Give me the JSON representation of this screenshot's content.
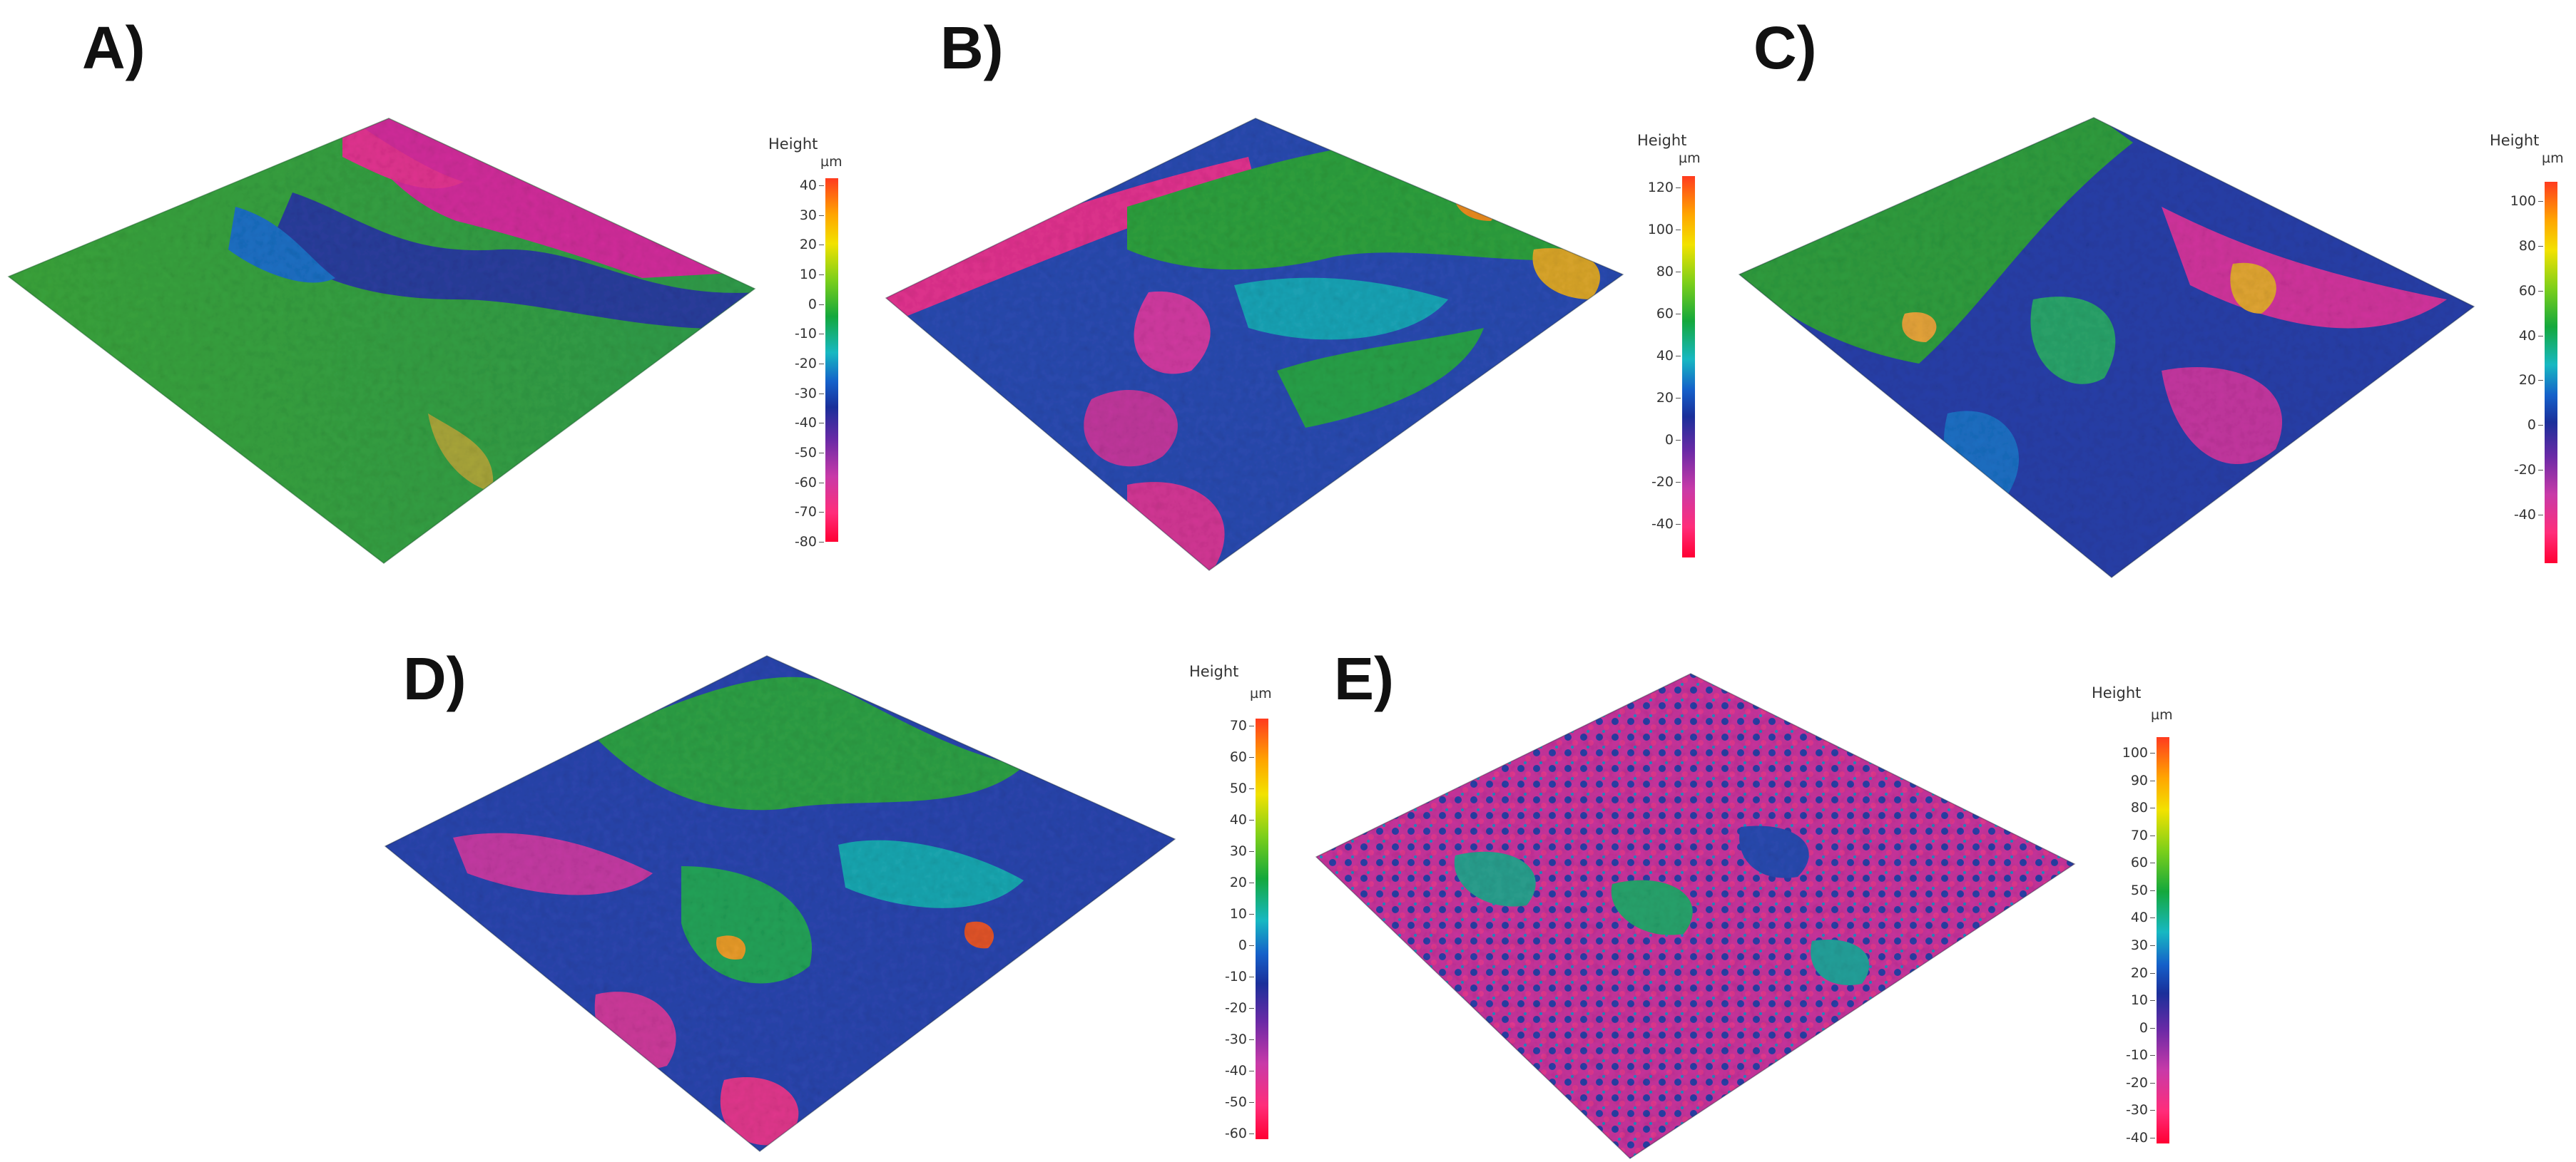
{
  "panels": [
    {
      "label": "A)",
      "colorbar_title": "Height",
      "colorbar_unit": "µm",
      "ticks": [
        "40",
        "30",
        "20",
        "10",
        "0",
        "-10",
        "-20",
        "-30",
        "-40",
        "-50",
        "-60",
        "-70",
        "-80"
      ]
    },
    {
      "label": "B)",
      "colorbar_title": "Height",
      "colorbar_unit": "µm",
      "ticks": [
        "120",
        "100",
        "80",
        "60",
        "40",
        "20",
        "0",
        "-20",
        "-40"
      ]
    },
    {
      "label": "C)",
      "colorbar_title": "Height",
      "colorbar_unit": "µm",
      "ticks": [
        "100",
        "80",
        "60",
        "40",
        "20",
        "0",
        "-20",
        "-40"
      ]
    },
    {
      "label": "D)",
      "colorbar_title": "Height",
      "colorbar_unit": "µm",
      "ticks": [
        "70",
        "60",
        "50",
        "40",
        "30",
        "20",
        "10",
        "0",
        "-10",
        "-20",
        "-30",
        "-40",
        "-50",
        "-60"
      ]
    },
    {
      "label": "E)",
      "colorbar_title": "Height",
      "colorbar_unit": "µm",
      "ticks": [
        "100",
        "90",
        "80",
        "70",
        "60",
        "50",
        "40",
        "30",
        "20",
        "10",
        "0",
        "-10",
        "-20",
        "-30",
        "-40"
      ]
    }
  ],
  "colors": {
    "high": "#ff3b1f",
    "mid_high": "#f2e200",
    "mid": "#14a83c",
    "mid_low": "#1560c9",
    "low": "#ff0033"
  }
}
